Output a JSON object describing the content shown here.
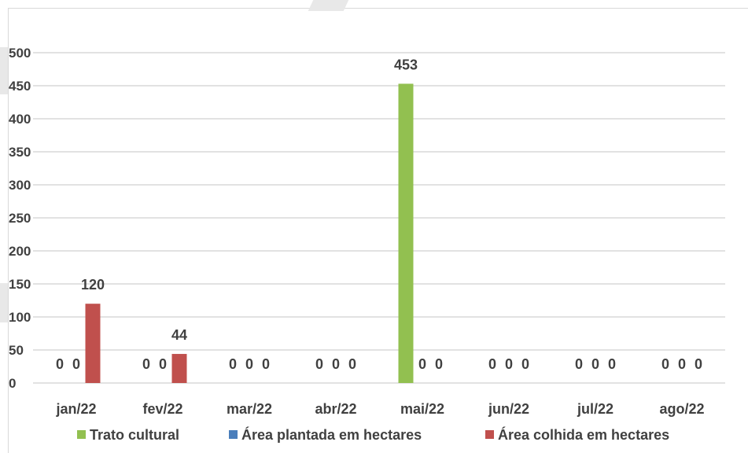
{
  "chart_data": {
    "type": "bar",
    "categories": [
      "jan/22",
      "fev/22",
      "mar/22",
      "abr/22",
      "mai/22",
      "jun/22",
      "jul/22",
      "ago/22"
    ],
    "series": [
      {
        "name": "Trato cultural",
        "color": "#92c050",
        "values": [
          0,
          0,
          0,
          0,
          453,
          0,
          0,
          0
        ]
      },
      {
        "name": "Área plantada em hectares",
        "color": "#4a7ebb",
        "values": [
          0,
          0,
          0,
          0,
          0,
          0,
          0,
          0
        ]
      },
      {
        "name": "Área colhida em hectares",
        "color": "#c0504d",
        "values": [
          120,
          44,
          0,
          0,
          0,
          0,
          0,
          0
        ]
      }
    ],
    "data_labels": [
      [
        "0",
        "0",
        "120"
      ],
      [
        "0",
        "0",
        "44"
      ],
      [
        "0",
        "0",
        "0"
      ],
      [
        "0",
        "0",
        "0"
      ],
      [
        "453",
        "0",
        "0"
      ],
      [
        "0",
        "0",
        "0"
      ],
      [
        "0",
        "0",
        "0"
      ],
      [
        "0",
        "0",
        "0"
      ]
    ],
    "yticks": [
      "0",
      "50",
      "100",
      "150",
      "200",
      "250",
      "300",
      "350",
      "400",
      "450",
      "500"
    ],
    "ylim": [
      0,
      500
    ],
    "grid": true,
    "legend_position": "bottom",
    "title": "",
    "xlabel": "",
    "ylabel": ""
  }
}
